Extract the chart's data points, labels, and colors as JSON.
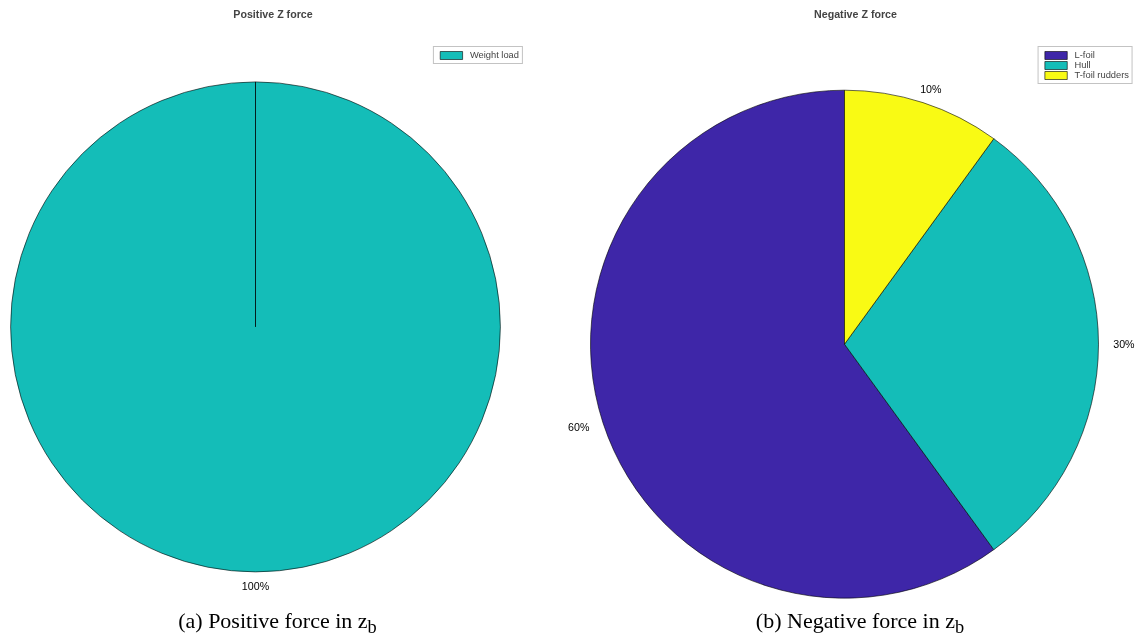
{
  "chart_data": [
    {
      "type": "pie",
      "title": "Positive Z force",
      "categories": [
        "Weight load"
      ],
      "values": [
        100
      ],
      "colors": [
        "#14bdb8"
      ],
      "value_labels": [
        "100%"
      ],
      "legend": "top right",
      "annotations": [
        "(a) Positive force in z$_{b}$"
      ]
    },
    {
      "type": "pie",
      "title": "Negative Z force",
      "categories": [
        "L-foil",
        "Hull",
        "T-foil rudders"
      ],
      "values": [
        60,
        30,
        10
      ],
      "colors": [
        "#3e26a8",
        "#14bdb8",
        "#f9fa14"
      ],
      "value_labels": [
        "60%",
        "30%",
        "10%"
      ],
      "legend": "top right",
      "annotations": [
        "(b) Negative force in z$_{b}$"
      ]
    }
  ]
}
